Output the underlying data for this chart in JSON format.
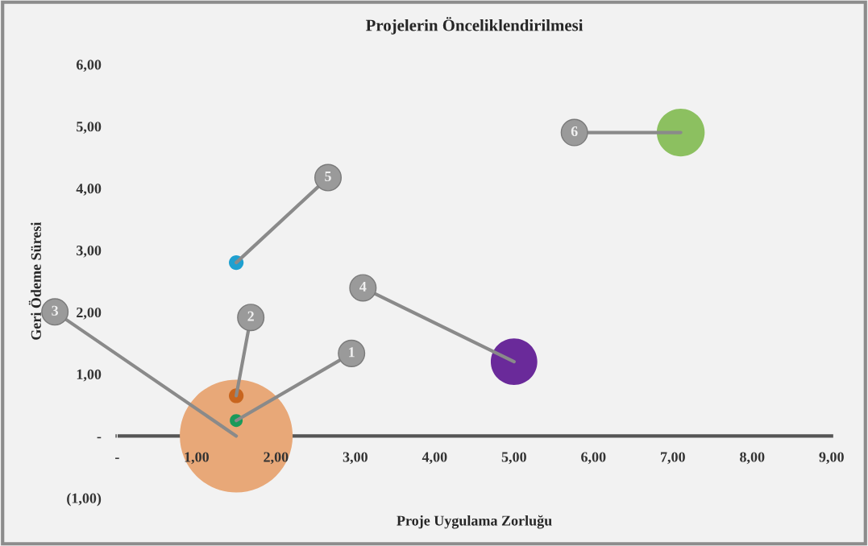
{
  "chart_data": {
    "type": "bubble",
    "title": "Projelerin Önceliklendirilmesi",
    "xlabel": "Proje Uygulama Zorluğu",
    "ylabel": "Geri Ödeme Süresi",
    "series": [
      {
        "name": "1",
        "color": "#1a9a5a",
        "x": [
          1.5
        ],
        "values": [
          0.25
        ],
        "sizes": [
          0.013
        ]
      },
      {
        "name": "2",
        "color": "#c8651e",
        "x": [
          1.5
        ],
        "values": [
          0.65
        ],
        "sizes": [
          0.017
        ]
      },
      {
        "name": "3",
        "color": "#e8a878",
        "x": [
          1.5
        ],
        "values": [
          0.0
        ],
        "sizes": [
          1
        ]
      },
      {
        "name": "4",
        "color": "#6a2a9a",
        "x": [
          5.0
        ],
        "values": [
          1.2
        ],
        "sizes": [
          0.17
        ]
      },
      {
        "name": "5",
        "color": "#1ea0d0",
        "x": [
          1.5
        ],
        "values": [
          2.8
        ],
        "sizes": [
          0.017
        ]
      },
      {
        "name": "6",
        "color": "#8cc060",
        "x": [
          7.1
        ],
        "values": [
          4.9
        ],
        "sizes": [
          0.18
        ]
      }
    ],
    "xlim": [
      0,
      9
    ],
    "xticks": [
      {
        "value": 0,
        "label": "-"
      },
      {
        "value": 1,
        "label": "1,00"
      },
      {
        "value": 2,
        "label": "2,00"
      },
      {
        "value": 3,
        "label": "3,00"
      },
      {
        "value": 4,
        "label": "4,00"
      },
      {
        "value": 5,
        "label": "5,00"
      },
      {
        "value": 6,
        "label": "6,00"
      },
      {
        "value": 7,
        "label": "7,00"
      },
      {
        "value": 8,
        "label": "8,00"
      },
      {
        "value": 9,
        "label": "9,00"
      }
    ],
    "ylim": [
      -1,
      6
    ],
    "yticks": [
      {
        "value": -1,
        "label": "(1,00)"
      },
      {
        "value": 0,
        "label": "-"
      },
      {
        "value": 1,
        "label": "1,00"
      },
      {
        "value": 2,
        "label": "2,00"
      },
      {
        "value": 3,
        "label": "3,00"
      },
      {
        "value": 4,
        "label": "4,00"
      },
      {
        "value": 5,
        "label": "5,00"
      },
      {
        "value": 6,
        "label": "6,00"
      }
    ],
    "grid": false
  }
}
